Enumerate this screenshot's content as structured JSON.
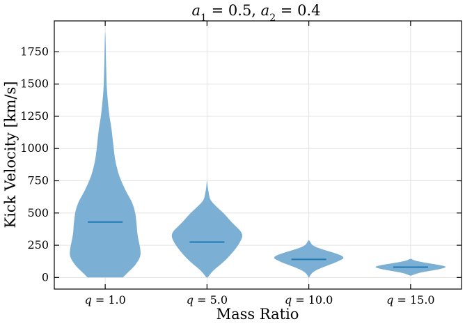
{
  "chart_data": {
    "type": "violin",
    "title": "a₁ = 0.5, a₂ = 0.4",
    "title_parts": {
      "a1_label": "a",
      "a1_sub": "1",
      "a1_val": " = 0.5, ",
      "a2_label": "a",
      "a2_sub": "2",
      "a2_val": " = 0.4"
    },
    "xlabel": "Mass Ratio",
    "ylabel": "Kick Velocity [km/s]",
    "ylim": [
      -90,
      1990
    ],
    "yticks": [
      0,
      250,
      500,
      750,
      1000,
      1250,
      1500,
      1750
    ],
    "grid": true,
    "color": "#1f77b4",
    "fill_color": "#7bafd4",
    "categories": [
      "q = 1.0",
      "q = 5.0",
      "q = 10.0",
      "q = 15.0"
    ],
    "category_parts": [
      {
        "var": "q",
        "val": " = 1.0"
      },
      {
        "var": "q",
        "val": " = 5.0"
      },
      {
        "var": "q",
        "val": " = 10.0"
      },
      {
        "var": "q",
        "val": " = 15.0"
      }
    ],
    "series": [
      {
        "category": "q = 1.0",
        "median": 430,
        "range": [
          0,
          1900
        ],
        "profile": [
          [
            0,
            0.5
          ],
          [
            40,
            0.64
          ],
          [
            80,
            0.8
          ],
          [
            120,
            0.91
          ],
          [
            160,
            0.99
          ],
          [
            200,
            1.0
          ],
          [
            250,
            0.97
          ],
          [
            300,
            0.93
          ],
          [
            350,
            0.9
          ],
          [
            400,
            0.89
          ],
          [
            450,
            0.87
          ],
          [
            500,
            0.85
          ],
          [
            550,
            0.8
          ],
          [
            600,
            0.73
          ],
          [
            650,
            0.62
          ],
          [
            700,
            0.53
          ],
          [
            750,
            0.45
          ],
          [
            800,
            0.38
          ],
          [
            850,
            0.33
          ],
          [
            900,
            0.29
          ],
          [
            950,
            0.26
          ],
          [
            1000,
            0.24
          ],
          [
            1050,
            0.22
          ],
          [
            1100,
            0.2
          ],
          [
            1150,
            0.18
          ],
          [
            1200,
            0.15
          ],
          [
            1250,
            0.12
          ],
          [
            1300,
            0.1
          ],
          [
            1350,
            0.08
          ],
          [
            1400,
            0.065
          ],
          [
            1450,
            0.05
          ],
          [
            1500,
            0.04
          ],
          [
            1600,
            0.03
          ],
          [
            1700,
            0.02
          ],
          [
            1800,
            0.015
          ],
          [
            1900,
            0.005
          ]
        ]
      },
      {
        "category": "q = 5.0",
        "median": 275,
        "range": [
          0,
          750
        ],
        "profile": [
          [
            0,
            0.02
          ],
          [
            30,
            0.1
          ],
          [
            60,
            0.2
          ],
          [
            100,
            0.38
          ],
          [
            150,
            0.58
          ],
          [
            200,
            0.74
          ],
          [
            250,
            0.88
          ],
          [
            300,
            0.98
          ],
          [
            330,
            1.0
          ],
          [
            360,
            0.95
          ],
          [
            400,
            0.8
          ],
          [
            450,
            0.62
          ],
          [
            500,
            0.47
          ],
          [
            550,
            0.26
          ],
          [
            600,
            0.09
          ],
          [
            650,
            0.05
          ],
          [
            700,
            0.02
          ],
          [
            750,
            0.005
          ]
        ]
      },
      {
        "category": "q = 10.0",
        "median": 140,
        "range": [
          0,
          290
        ],
        "profile": [
          [
            0,
            0.01
          ],
          [
            30,
            0.06
          ],
          [
            60,
            0.22
          ],
          [
            90,
            0.5
          ],
          [
            110,
            0.7
          ],
          [
            130,
            0.86
          ],
          [
            150,
            1.0
          ],
          [
            170,
            0.93
          ],
          [
            190,
            0.72
          ],
          [
            210,
            0.48
          ],
          [
            230,
            0.25
          ],
          [
            250,
            0.1
          ],
          [
            270,
            0.05
          ],
          [
            290,
            0.01
          ]
        ]
      },
      {
        "category": "q = 15.0",
        "median": 80,
        "range": [
          15,
          145
        ],
        "profile": [
          [
            15,
            0.02
          ],
          [
            30,
            0.15
          ],
          [
            45,
            0.4
          ],
          [
            60,
            0.75
          ],
          [
            75,
            0.97
          ],
          [
            85,
            1.0
          ],
          [
            95,
            0.85
          ],
          [
            110,
            0.52
          ],
          [
            125,
            0.2
          ],
          [
            135,
            0.08
          ],
          [
            145,
            0.01
          ]
        ]
      }
    ]
  }
}
